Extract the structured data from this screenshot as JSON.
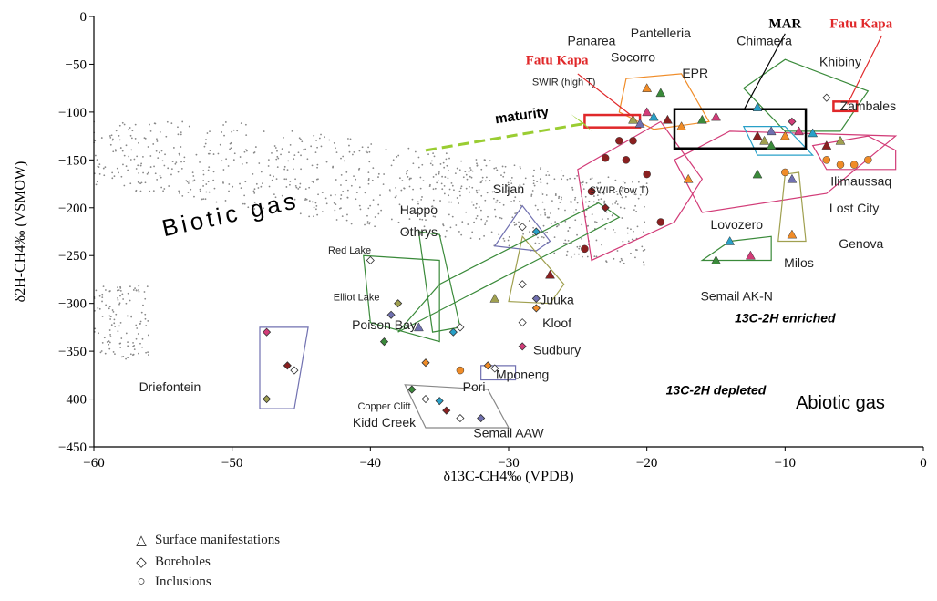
{
  "chart_data": {
    "type": "scatter",
    "xlabel": "δ13C-CH4‰ (VPDB)",
    "ylabel": "δ2H-CH4‰ (VSMOW)",
    "xlim": [
      -60,
      0
    ],
    "ylim": [
      -450,
      0
    ],
    "xticks": [
      -60,
      -50,
      -40,
      -30,
      -20,
      -10,
      0
    ],
    "yticks": [
      0,
      -50,
      -100,
      -150,
      -200,
      -250,
      -300,
      -350,
      -400,
      -450
    ],
    "grid": false,
    "regions": [
      {
        "label": "Biotic gas",
        "x": -50,
        "y": -215,
        "color": "#000000"
      },
      {
        "label": "Abiotic gas",
        "x": -6,
        "y": -410,
        "color": "#000000"
      },
      {
        "label": "13C-2H enriched",
        "x": -10,
        "y": -320,
        "color": "#000000"
      },
      {
        "label": "13C-2H depleted",
        "x": -15,
        "y": -395,
        "color": "#000000"
      },
      {
        "label": "maturity",
        "x": -29,
        "y": -108,
        "color": "#000000"
      }
    ],
    "site_labels": [
      {
        "text": "Panarea",
        "x": -24,
        "y": -30
      },
      {
        "text": "Pantelleria",
        "x": -19,
        "y": -22
      },
      {
        "text": "Socorro",
        "x": -21,
        "y": -47
      },
      {
        "text": "Chimaera",
        "x": -11.5,
        "y": -30
      },
      {
        "text": "Khibiny",
        "x": -6,
        "y": -52
      },
      {
        "text": "EPR",
        "x": -16.5,
        "y": -64
      },
      {
        "text": "SWIR (high T)",
        "x": -26,
        "y": -72
      },
      {
        "text": "SWIR (low T)",
        "x": -22,
        "y": -185
      },
      {
        "text": "Zambales",
        "x": -4,
        "y": -98
      },
      {
        "text": "Ilimaussaq",
        "x": -4.5,
        "y": -177
      },
      {
        "text": "Lost City",
        "x": -5,
        "y": -205
      },
      {
        "text": "Lovozero",
        "x": -13.5,
        "y": -222
      },
      {
        "text": "Genova",
        "x": -4.5,
        "y": -242
      },
      {
        "text": "Milos",
        "x": -9,
        "y": -262
      },
      {
        "text": "Semail AK-N",
        "x": -13.5,
        "y": -297
      },
      {
        "text": "Siljan",
        "x": -30,
        "y": -185
      },
      {
        "text": "Happo",
        "x": -36.5,
        "y": -207
      },
      {
        "text": "Othrys",
        "x": -36.5,
        "y": -230
      },
      {
        "text": "Red Lake",
        "x": -41.5,
        "y": -248
      },
      {
        "text": "Elliot Lake",
        "x": -41,
        "y": -297
      },
      {
        "text": "Poison Bay",
        "x": -39,
        "y": -327
      },
      {
        "text": "Juuka",
        "x": -26.5,
        "y": -301
      },
      {
        "text": "Kloof",
        "x": -26.5,
        "y": -325
      },
      {
        "text": "Sudbury",
        "x": -26.5,
        "y": -353
      },
      {
        "text": "Mponeng",
        "x": -29,
        "y": -379
      },
      {
        "text": "Pori",
        "x": -32.5,
        "y": -392
      },
      {
        "text": "Driefontein",
        "x": -54.5,
        "y": -392
      },
      {
        "text": "Copper Clift",
        "x": -39,
        "y": -411
      },
      {
        "text": "Kidd Creek",
        "x": -39,
        "y": -429
      },
      {
        "text": "Semail AAW",
        "x": -30,
        "y": -440
      }
    ],
    "highlight_labels": [
      {
        "text": "MAR",
        "x": -10,
        "y": -12,
        "color": "#000000"
      },
      {
        "text": "Fatu Kapa",
        "x": -26.5,
        "y": -50,
        "color": "#e0282a"
      },
      {
        "text": "Fatu Kapa",
        "x": -4.5,
        "y": -12,
        "color": "#e0282a"
      }
    ],
    "highlight_boxes": [
      {
        "label": "MAR",
        "x": [
          -18,
          -8.5
        ],
        "y": [
          -97,
          -138
        ],
        "color": "#000000"
      },
      {
        "label": "Fatu Kapa",
        "x": [
          -24.5,
          -20.5
        ],
        "y": [
          -103,
          -116
        ],
        "color": "#e0282a"
      },
      {
        "label": "Fatu Kapa",
        "x": [
          -6.5,
          -4.8
        ],
        "y": [
          -89,
          -99
        ],
        "color": "#e0282a"
      }
    ],
    "series": [
      {
        "name": "Surface manifestations",
        "marker": "triangle",
        "points": [
          [
            -20,
            -75
          ],
          [
            -19,
            -80
          ],
          [
            -20,
            -100
          ],
          [
            -19.5,
            -105
          ],
          [
            -18.5,
            -108
          ],
          [
            -21,
            -108
          ],
          [
            -20.5,
            -112
          ],
          [
            -17.5,
            -115
          ],
          [
            -16,
            -108
          ],
          [
            -15,
            -105
          ],
          [
            -12,
            -95
          ],
          [
            -12,
            -125
          ],
          [
            -11.5,
            -130
          ],
          [
            -11,
            -120
          ],
          [
            -10,
            -125
          ],
          [
            -11,
            -135
          ],
          [
            -9,
            -120
          ],
          [
            -8,
            -122
          ],
          [
            -7,
            -135
          ],
          [
            -6,
            -130
          ],
          [
            -9.5,
            -170
          ],
          [
            -9.5,
            -228
          ],
          [
            -15,
            -255
          ],
          [
            -12.5,
            -250
          ],
          [
            -14,
            -235
          ],
          [
            -27,
            -270
          ],
          [
            -31,
            -295
          ],
          [
            -36.5,
            -325
          ],
          [
            -17,
            -170
          ],
          [
            -12,
            -165
          ]
        ]
      },
      {
        "name": "Boreholes",
        "marker": "diamond",
        "points": [
          [
            -29,
            -220
          ],
          [
            -28,
            -225
          ],
          [
            -23,
            -200
          ],
          [
            -29,
            -280
          ],
          [
            -28,
            -295
          ],
          [
            -28,
            -305
          ],
          [
            -29,
            -320
          ],
          [
            -29,
            -345
          ],
          [
            -34,
            -330
          ],
          [
            -33.5,
            -325
          ],
          [
            -38,
            -300
          ],
          [
            -38.5,
            -312
          ],
          [
            -40,
            -255
          ],
          [
            -39,
            -340
          ],
          [
            -47.5,
            -330
          ],
          [
            -45.5,
            -370
          ],
          [
            -46,
            -365
          ],
          [
            -47.5,
            -400
          ],
          [
            -31,
            -368
          ],
          [
            -31.5,
            -365
          ],
          [
            -37,
            -390
          ],
          [
            -36,
            -400
          ],
          [
            -35,
            -402
          ],
          [
            -34.5,
            -412
          ],
          [
            -33.5,
            -420
          ],
          [
            -32,
            -420
          ],
          [
            -36,
            -362
          ],
          [
            -7,
            -85
          ],
          [
            -9.5,
            -110
          ]
        ]
      },
      {
        "name": "Inclusions",
        "marker": "circle",
        "points": [
          [
            -22,
            -130
          ],
          [
            -21,
            -130
          ],
          [
            -23,
            -148
          ],
          [
            -21.5,
            -150
          ],
          [
            -20,
            -165
          ],
          [
            -24,
            -183
          ],
          [
            -24.5,
            -243
          ],
          [
            -19,
            -215
          ],
          [
            -7,
            -150
          ],
          [
            -6,
            -155
          ],
          [
            -5,
            -155
          ],
          [
            -4,
            -150
          ],
          [
            -10,
            -163
          ],
          [
            -33.5,
            -370
          ]
        ]
      }
    ]
  },
  "legend": [
    {
      "symbol": "△",
      "label": "Surface manifestations"
    },
    {
      "symbol": "◇",
      "label": "Boreholes"
    },
    {
      "symbol": "○",
      "label": "Inclusions"
    }
  ],
  "colors": {
    "biotic_dots": "#888888",
    "red_highlight": "#e0282a",
    "black_box": "#000000",
    "orange_group": "#f08c28",
    "green_group": "#3a8a3a",
    "pink_group": "#d23c78",
    "cyan_group": "#28a0c8",
    "olive_group": "#a0a050",
    "purple_group": "#7070b0",
    "maroon_group": "#8a2020",
    "maturity_arrow": "#9acd32"
  }
}
